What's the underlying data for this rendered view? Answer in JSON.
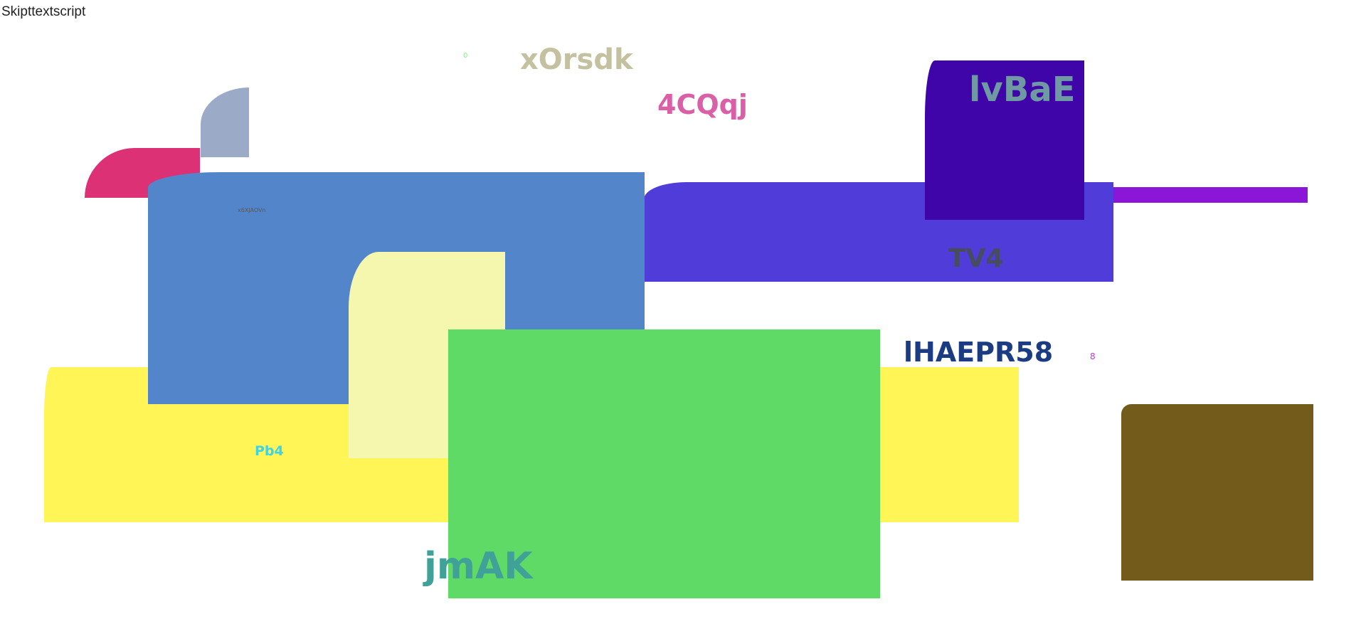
{
  "header": {
    "text": "Skipttextscript"
  },
  "labels": {
    "xorsdk": "xOrsdk",
    "zero": "0",
    "fourcqqj": "4CQqj",
    "lvbae": "lvBaE",
    "tiny": "x6XJAOVn",
    "tv4": "TV4",
    "lhaepr": "lHAEPR58",
    "eight": "8",
    "pb4": "Pb4",
    "jmak": "jmAK"
  },
  "colors": {
    "gray_quarter": "#9baac6",
    "pink_quarter": "#dd3175",
    "purple_bar": "#8c16d8",
    "indigo_rect": "#503cd8",
    "teal_back": "#6e9894",
    "yellow_bar": "#fff556",
    "steel_blue": "#5385cb",
    "pale_yellow": "#f5f7ae",
    "green": "#5fda66",
    "violet_box": "#3f05a8",
    "olive_box": "#735b1b",
    "xorsdk_text": "#c4c1a0",
    "zero_text": "#8ef08a",
    "fourcqqj_text": "#db5fa6",
    "lvbae_text": "#6f9aa3",
    "tiny_text": "#5a5a5a",
    "tv4_text": "#474c60",
    "lhaepr_text": "#1b3c82",
    "eight_text": "#c334d8",
    "pb4_text": "#3ed4e6",
    "jmak_text": "#3fa198"
  }
}
